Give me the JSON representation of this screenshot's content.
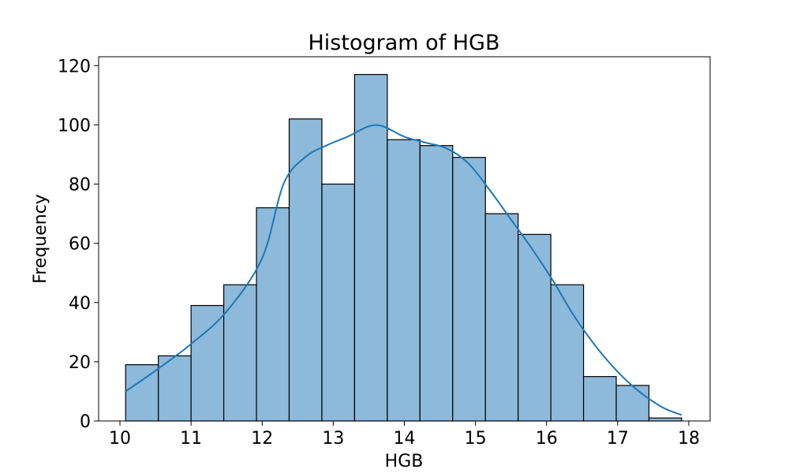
{
  "chart_data": {
    "type": "bar",
    "title": "Histogram of HGB",
    "xlabel": "HGB",
    "ylabel": "Frequency",
    "xlim": [
      9.7,
      18.3
    ],
    "ylim": [
      0,
      123
    ],
    "xticks": [
      10,
      11,
      12,
      13,
      14,
      15,
      16,
      17,
      18
    ],
    "yticks": [
      0,
      20,
      40,
      60,
      80,
      100,
      120
    ],
    "bin_edges": [
      10.08,
      10.54,
      11.0,
      11.46,
      11.92,
      12.38,
      12.84,
      13.3,
      13.76,
      14.22,
      14.68,
      15.14,
      15.6,
      16.06,
      16.52,
      16.98,
      17.44,
      17.9
    ],
    "values": [
      19,
      22,
      39,
      46,
      72,
      102,
      80,
      117,
      95,
      93,
      89,
      70,
      63,
      46,
      15,
      12,
      1
    ],
    "bar_color": "#8db9da",
    "bar_edge_color": "#000000",
    "kde_color": "#1f77b4",
    "kde": {
      "x": [
        10.08,
        10.5,
        11.0,
        11.5,
        12.0,
        12.3,
        12.6,
        12.9,
        13.2,
        13.5,
        13.7,
        14.0,
        14.3,
        14.6,
        14.9,
        15.2,
        15.5,
        15.8,
        16.1,
        16.4,
        16.8,
        17.2,
        17.6,
        17.9
      ],
      "y": [
        10,
        17,
        26,
        37,
        55,
        80,
        89,
        93,
        96,
        99.5,
        99.5,
        96,
        94,
        92,
        87,
        78,
        68,
        58,
        47,
        35,
        22,
        12,
        5,
        2
      ]
    }
  }
}
